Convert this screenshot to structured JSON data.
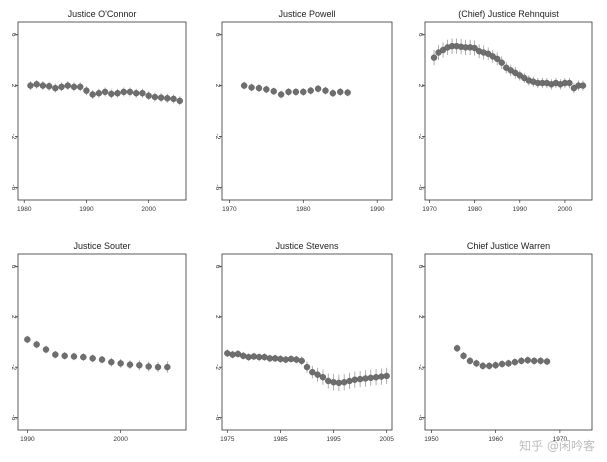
{
  "chart_data": [
    {
      "type": "scatter",
      "title": "Justice O'Connor",
      "xlim": [
        1979,
        2006
      ],
      "ylim": [
        -7,
        7
      ],
      "xticks": [
        1980,
        1990,
        2000
      ],
      "xtick_labels": [
        "1980",
        "1990",
        "2000"
      ],
      "yticks": [
        6,
        2,
        -2,
        -6
      ],
      "ytick_labels": [
        "6",
        "2",
        "-2",
        "-6"
      ],
      "x": [
        1981,
        1982,
        1983,
        1984,
        1985,
        1986,
        1987,
        1988,
        1989,
        1990,
        1991,
        1992,
        1993,
        1994,
        1995,
        1996,
        1997,
        1998,
        1999,
        2000,
        2001,
        2002,
        2003,
        2004,
        2005
      ],
      "y": [
        2.0,
        2.1,
        2.0,
        1.95,
        1.8,
        1.9,
        2.0,
        1.9,
        1.9,
        1.6,
        1.3,
        1.4,
        1.5,
        1.35,
        1.4,
        1.5,
        1.5,
        1.4,
        1.4,
        1.2,
        1.1,
        1.05,
        1.0,
        0.95,
        0.8
      ],
      "err": [
        0.35,
        0.35,
        0.35,
        0.35,
        0.35,
        0.35,
        0.35,
        0.35,
        0.35,
        0.35,
        0.35,
        0.35,
        0.35,
        0.35,
        0.35,
        0.35,
        0.35,
        0.35,
        0.35,
        0.35,
        0.35,
        0.35,
        0.35,
        0.35,
        0.35
      ]
    },
    {
      "type": "scatter",
      "title": "Justice Powell",
      "xlim": [
        1969,
        1992
      ],
      "ylim": [
        -7,
        7
      ],
      "xticks": [
        1970,
        1980,
        1990
      ],
      "xtick_labels": [
        "1970",
        "1980",
        "1990"
      ],
      "yticks": [
        6,
        2,
        -2,
        -6
      ],
      "ytick_labels": [
        "6",
        "2",
        "-2",
        "-6"
      ],
      "x": [
        1972,
        1973,
        1974,
        1975,
        1976,
        1977,
        1978,
        1979,
        1980,
        1981,
        1982,
        1983,
        1984,
        1985,
        1986
      ],
      "y": [
        2.0,
        1.85,
        1.8,
        1.7,
        1.55,
        1.3,
        1.5,
        1.5,
        1.5,
        1.6,
        1.75,
        1.6,
        1.4,
        1.5,
        1.45
      ],
      "err": [
        0.3,
        0.3,
        0.3,
        0.3,
        0.3,
        0.3,
        0.3,
        0.3,
        0.3,
        0.3,
        0.3,
        0.3,
        0.3,
        0.3,
        0.3
      ]
    },
    {
      "type": "scatter",
      "title": "(Chief) Justice Rehnquist",
      "xlim": [
        1969,
        2006
      ],
      "ylim": [
        -7,
        7
      ],
      "xticks": [
        1970,
        1980,
        1990,
        2000
      ],
      "xtick_labels": [
        "1970",
        "1980",
        "1990",
        "2000"
      ],
      "yticks": [
        6,
        2,
        -2,
        -6
      ],
      "ytick_labels": [
        "6",
        "2",
        "-2",
        "-6"
      ],
      "x": [
        1971,
        1972,
        1973,
        1974,
        1975,
        1976,
        1977,
        1978,
        1979,
        1980,
        1981,
        1982,
        1983,
        1984,
        1985,
        1986,
        1987,
        1988,
        1989,
        1990,
        1991,
        1992,
        1993,
        1994,
        1995,
        1996,
        1997,
        1998,
        1999,
        2000,
        2001,
        2002,
        2003,
        2004
      ],
      "y": [
        4.2,
        4.6,
        4.8,
        5.0,
        5.1,
        5.1,
        5.05,
        5.0,
        5.0,
        4.95,
        4.7,
        4.6,
        4.5,
        4.3,
        4.1,
        3.8,
        3.4,
        3.2,
        3.0,
        2.8,
        2.6,
        2.4,
        2.3,
        2.2,
        2.2,
        2.2,
        2.1,
        2.2,
        2.1,
        2.2,
        2.2,
        1.8,
        2.0,
        2.0
      ],
      "err": [
        0.6,
        0.6,
        0.6,
        0.6,
        0.6,
        0.6,
        0.6,
        0.6,
        0.6,
        0.6,
        0.55,
        0.55,
        0.5,
        0.5,
        0.5,
        0.5,
        0.45,
        0.45,
        0.45,
        0.4,
        0.4,
        0.4,
        0.4,
        0.4,
        0.4,
        0.4,
        0.4,
        0.4,
        0.4,
        0.4,
        0.4,
        0.4,
        0.4,
        0.4
      ]
    },
    {
      "type": "scatter",
      "title": "Justice Souter",
      "xlim": [
        1989,
        2007
      ],
      "ylim": [
        -7,
        7
      ],
      "xticks": [
        1990,
        2000
      ],
      "xtick_labels": [
        "1990",
        "2000"
      ],
      "yticks": [
        6,
        2,
        -2,
        -6
      ],
      "ytick_labels": [
        "6",
        "2",
        "-2",
        "-6"
      ],
      "x": [
        1990,
        1991,
        1992,
        1993,
        1994,
        1995,
        1996,
        1997,
        1998,
        1999,
        2000,
        2001,
        2002,
        2003,
        2004,
        2005
      ],
      "y": [
        0.2,
        -0.2,
        -0.6,
        -1.0,
        -1.1,
        -1.15,
        -1.2,
        -1.3,
        -1.4,
        -1.6,
        -1.7,
        -1.8,
        -1.85,
        -1.95,
        -2.0,
        -2.0
      ],
      "err": [
        0.3,
        0.3,
        0.3,
        0.3,
        0.3,
        0.3,
        0.3,
        0.3,
        0.3,
        0.35,
        0.35,
        0.35,
        0.4,
        0.4,
        0.4,
        0.45
      ]
    },
    {
      "type": "scatter",
      "title": "Justice Stevens",
      "xlim": [
        1974,
        2006
      ],
      "ylim": [
        -7,
        7
      ],
      "xticks": [
        1975,
        1985,
        1995,
        2005
      ],
      "xtick_labels": [
        "1975",
        "1985",
        "1995",
        "2005"
      ],
      "yticks": [
        6,
        2,
        -2,
        -6
      ],
      "ytick_labels": [
        "6",
        "2",
        "-2",
        "-6"
      ],
      "x": [
        1975,
        1976,
        1977,
        1978,
        1979,
        1980,
        1981,
        1982,
        1983,
        1984,
        1985,
        1986,
        1987,
        1988,
        1989,
        1990,
        1991,
        1992,
        1993,
        1994,
        1995,
        1996,
        1997,
        1998,
        1999,
        2000,
        2001,
        2002,
        2003,
        2004,
        2005
      ],
      "y": [
        -0.9,
        -1.0,
        -0.95,
        -1.1,
        -1.2,
        -1.15,
        -1.2,
        -1.2,
        -1.3,
        -1.3,
        -1.35,
        -1.4,
        -1.35,
        -1.4,
        -1.5,
        -2.0,
        -2.4,
        -2.6,
        -2.8,
        -3.1,
        -3.2,
        -3.25,
        -3.2,
        -3.1,
        -3.0,
        -2.95,
        -2.9,
        -2.85,
        -2.8,
        -2.75,
        -2.7
      ],
      "err": [
        0.3,
        0.3,
        0.3,
        0.3,
        0.3,
        0.3,
        0.3,
        0.3,
        0.3,
        0.3,
        0.3,
        0.3,
        0.3,
        0.3,
        0.35,
        0.45,
        0.5,
        0.55,
        0.6,
        0.6,
        0.65,
        0.65,
        0.65,
        0.65,
        0.65,
        0.65,
        0.65,
        0.65,
        0.65,
        0.65,
        0.65
      ]
    },
    {
      "type": "scatter",
      "title": "Chief Justice Warren",
      "xlim": [
        1949,
        1975
      ],
      "ylim": [
        -7,
        7
      ],
      "xticks": [
        1950,
        1960,
        1970
      ],
      "xtick_labels": [
        "1950",
        "1960",
        "1970"
      ],
      "yticks": [
        6,
        2,
        -2,
        -6
      ],
      "ytick_labels": [
        "6",
        "2",
        "-2",
        "-6"
      ],
      "x": [
        1954,
        1955,
        1956,
        1957,
        1958,
        1959,
        1960,
        1961,
        1962,
        1963,
        1964,
        1965,
        1966,
        1967,
        1968
      ],
      "y": [
        -0.5,
        -1.1,
        -1.5,
        -1.7,
        -1.9,
        -1.9,
        -1.85,
        -1.75,
        -1.7,
        -1.6,
        -1.5,
        -1.45,
        -1.5,
        -1.5,
        -1.55
      ],
      "err": [
        0.3,
        0.3,
        0.3,
        0.3,
        0.3,
        0.3,
        0.3,
        0.3,
        0.3,
        0.3,
        0.3,
        0.3,
        0.3,
        0.3,
        0.3
      ]
    }
  ],
  "watermark": "知乎 @闲吟客"
}
